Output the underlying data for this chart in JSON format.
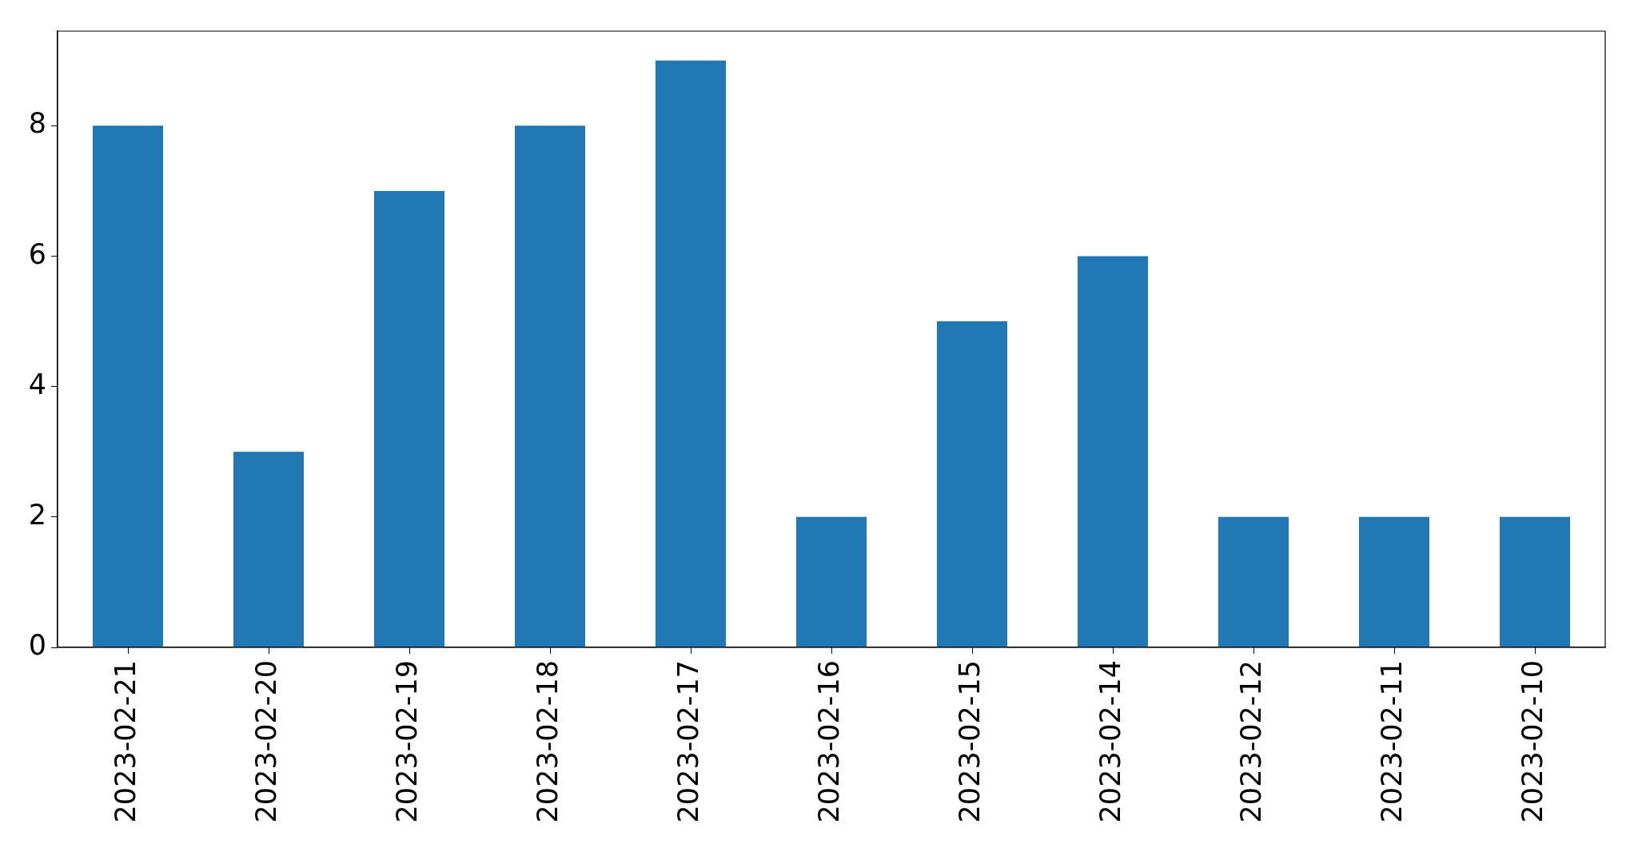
{
  "chart_data": {
    "type": "bar",
    "categories": [
      "2023-02-21",
      "2023-02-20",
      "2023-02-19",
      "2023-02-18",
      "2023-02-17",
      "2023-02-16",
      "2023-02-15",
      "2023-02-14",
      "2023-02-12",
      "2023-02-11",
      "2023-02-10"
    ],
    "values": [
      8,
      3,
      7,
      8,
      9,
      2,
      5,
      6,
      2,
      2,
      2
    ],
    "color": "#1f77b4",
    "ylim": [
      0,
      9.45
    ],
    "yticks": [
      0,
      2,
      4,
      6,
      8
    ]
  }
}
